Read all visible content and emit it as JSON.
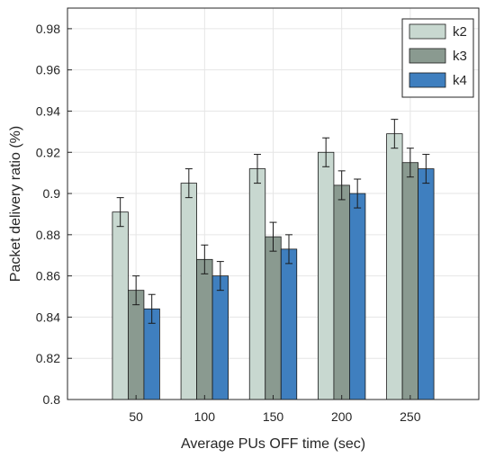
{
  "chart_data": {
    "type": "bar",
    "xlabel": "Average PUs OFF time (sec)",
    "ylabel": "Packet delivery ratio (%)",
    "ylim": [
      0.8,
      0.99
    ],
    "yticks": [
      "0.8",
      "0.82",
      "0.84",
      "0.86",
      "0.88",
      "0.9",
      "0.92",
      "0.94",
      "0.96",
      "0.98"
    ],
    "categories": [
      "50",
      "100",
      "150",
      "200",
      "250"
    ],
    "grid": true,
    "legend_position": "top-right",
    "series": [
      {
        "name": "k2",
        "color": "#c8d8d0",
        "values": [
          0.891,
          0.905,
          0.912,
          0.92,
          0.929
        ],
        "error": [
          0.007,
          0.007,
          0.007,
          0.007,
          0.007
        ]
      },
      {
        "name": "k3",
        "color": "#8a9a90",
        "values": [
          0.853,
          0.868,
          0.879,
          0.904,
          0.915
        ],
        "error": [
          0.007,
          0.007,
          0.007,
          0.007,
          0.007
        ]
      },
      {
        "name": "k4",
        "color": "#3f7fbf",
        "values": [
          0.844,
          0.86,
          0.873,
          0.9,
          0.912
        ],
        "error": [
          0.007,
          0.007,
          0.007,
          0.007,
          0.007
        ]
      }
    ]
  }
}
